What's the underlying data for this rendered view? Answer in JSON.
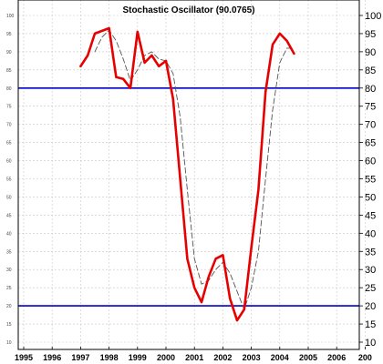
{
  "chart_data": {
    "type": "line",
    "title": "Stochastic Oscillator (90.0765)",
    "x_ticks": [
      "1995",
      "1996",
      "1997",
      "1998",
      "1999",
      "2000",
      "2001",
      "2002",
      "2003",
      "2004",
      "2005",
      "2006",
      "200"
    ],
    "xlim": [
      1995,
      2007
    ],
    "ylim": [
      10,
      100
    ],
    "y_ticks": [
      10,
      15,
      20,
      25,
      30,
      35,
      40,
      45,
      50,
      55,
      60,
      65,
      70,
      75,
      80,
      85,
      90,
      95,
      100
    ],
    "grid": true,
    "reference_lines": [
      {
        "value": 80,
        "color": "#0000cc"
      },
      {
        "value": 20,
        "color": "#0000cc"
      }
    ],
    "series": [
      {
        "style": "solid",
        "color": "#e60000",
        "x": [
          1997.0,
          1997.25,
          1997.5,
          1998.0,
          1998.25,
          1998.5,
          1998.75,
          1999.0,
          1999.25,
          1999.5,
          1999.75,
          2000.0,
          2000.25,
          2000.5,
          2000.75,
          2001.0,
          2001.25,
          2001.5,
          2001.75,
          2002.0,
          2002.25,
          2002.5,
          2002.75,
          2003.0,
          2003.25,
          2003.5,
          2003.75,
          2004.0,
          2004.25,
          2004.5
        ],
        "y": [
          86,
          89,
          95,
          96.5,
          83,
          82.5,
          80,
          95.5,
          87,
          89,
          86,
          87.5,
          77,
          55,
          33,
          25,
          21,
          28,
          33,
          34,
          22,
          16,
          19,
          36,
          52,
          79,
          92,
          95,
          93,
          89.5
        ]
      },
      {
        "style": "dashed",
        "color": "#555555",
        "x": [
          1997.5,
          1997.75,
          1998.0,
          1998.25,
          1998.5,
          1998.75,
          1999.0,
          1999.25,
          1999.5,
          1999.75,
          2000.0,
          2000.25,
          2000.5,
          2000.75,
          2001.0,
          2001.25,
          2001.5,
          2001.75,
          2002.0,
          2002.25,
          2002.5,
          2002.75,
          2003.0,
          2003.25,
          2003.5,
          2003.75,
          2004.0,
          2004.25,
          2004.5
        ],
        "y": [
          90,
          94,
          96,
          93,
          88,
          82,
          85,
          89,
          90,
          88,
          87.5,
          84,
          72,
          52,
          33,
          26,
          27,
          30,
          32,
          29,
          24,
          19,
          25,
          35,
          55,
          74,
          87,
          91,
          91
        ]
      }
    ]
  }
}
